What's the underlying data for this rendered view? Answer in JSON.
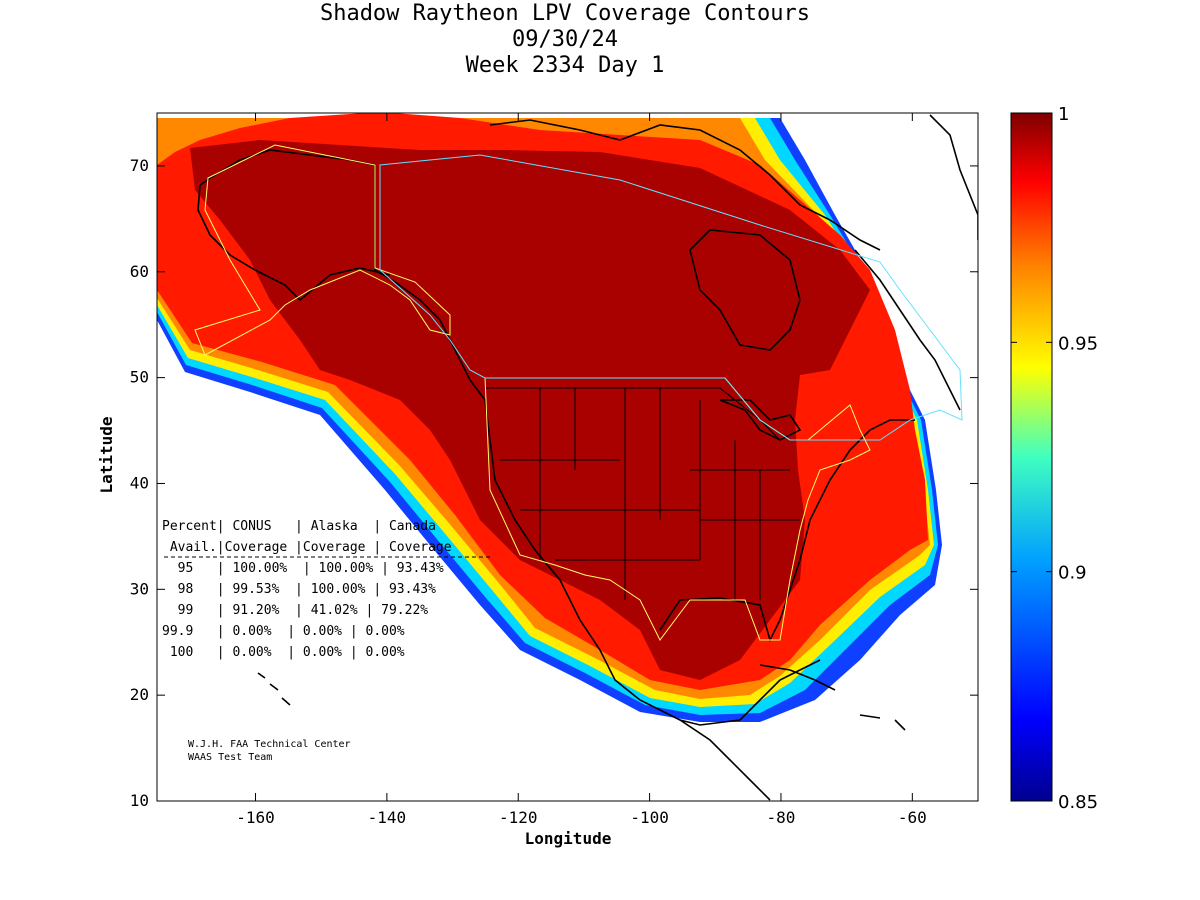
{
  "title": {
    "line1": "Shadow Raytheon LPV Coverage Contours",
    "line2": "09/30/24",
    "line3": "Week 2334 Day 1"
  },
  "axes": {
    "xlabel": "Longitude",
    "ylabel": "Latitude",
    "xlim": [
      -175,
      -50
    ],
    "ylim": [
      10,
      75
    ],
    "xticks": [
      -160,
      -140,
      -120,
      -100,
      -80,
      -60
    ],
    "yticks": [
      10,
      20,
      30,
      40,
      50,
      60,
      70
    ],
    "xtick_labels": [
      "-160",
      "-140",
      "-120",
      "-100",
      "-80",
      "-60"
    ],
    "ytick_labels": [
      "10",
      "20",
      "30",
      "40",
      "50",
      "60",
      "70"
    ]
  },
  "colorbar": {
    "range": [
      0.85,
      1
    ],
    "ticks": [
      0.85,
      0.9,
      0.95,
      1
    ],
    "tick_labels": [
      "0.85",
      "0.9",
      "0.95",
      "1"
    ]
  },
  "table": {
    "header1": "Percent| CONUS   | Alaska  | Canada",
    "header2": " Avail.|Coverage |Coverage | Coverage",
    "rows": [
      "  95   | 100.00%  | 100.00% | 93.43%",
      "  98   | 99.53%  | 100.00% | 93.43%",
      "  99   | 91.20%  | 41.02% | 79.22%",
      "99.9   | 0.00%  | 0.00% | 0.00%",
      " 100   | 0.00%  | 0.00% | 0.00%"
    ]
  },
  "credit": {
    "line1": "W.J.H. FAA Technical Center",
    "line2": "WAAS Test Team"
  },
  "colors": {
    "deep_red": "#a90000",
    "red": "#ff1a00",
    "orange": "#ff8800",
    "yellow": "#ffee00",
    "cyan": "#00d8ff",
    "blue": "#0a3cff",
    "navy": "#00008f",
    "region_outline": "#ffff66",
    "canada_outline": "#66e0ff"
  }
}
